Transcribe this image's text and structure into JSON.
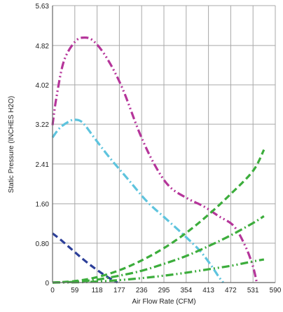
{
  "chart_data": {
    "type": "line",
    "xlabel": "Air Flow Rate (CFM)",
    "ylabel": "Static Pressure (INCHES H2O)",
    "xlim": [
      0,
      590
    ],
    "ylim": [
      0,
      5.63
    ],
    "x_ticks": [
      0,
      59,
      118,
      177,
      236,
      295,
      354,
      413,
      472,
      531,
      590
    ],
    "y_ticks": [
      0,
      0.8,
      1.6,
      2.41,
      3.22,
      4.02,
      4.82,
      5.63
    ],
    "x_tick_labels": [
      "0",
      "59",
      "118",
      "177",
      "236",
      "295",
      "354",
      "413",
      "472",
      "531",
      "590"
    ],
    "y_tick_labels": [
      "0",
      "0.80",
      "1.60",
      "2.41",
      "3.22",
      "4.02",
      "4.82",
      "5.63"
    ],
    "grid": true,
    "series": [
      {
        "color": "#b5359a",
        "dash": "dash-dot-dot",
        "points": [
          [
            0,
            3.2
          ],
          [
            10,
            3.75
          ],
          [
            30,
            4.5
          ],
          [
            60,
            4.9
          ],
          [
            85,
            4.98
          ],
          [
            110,
            4.9
          ],
          [
            145,
            4.55
          ],
          [
            185,
            3.95
          ],
          [
            230,
            3.05
          ],
          [
            270,
            2.4
          ],
          [
            310,
            1.95
          ],
          [
            360,
            1.7
          ],
          [
            400,
            1.55
          ],
          [
            440,
            1.35
          ],
          [
            480,
            1.15
          ],
          [
            510,
            0.75
          ],
          [
            530,
            0.35
          ],
          [
            541,
            0.0
          ]
        ]
      },
      {
        "color": "#5ec4de",
        "dash": "dash-dot",
        "points": [
          [
            0,
            2.95
          ],
          [
            20,
            3.15
          ],
          [
            45,
            3.28
          ],
          [
            60,
            3.31
          ],
          [
            80,
            3.25
          ],
          [
            110,
            2.95
          ],
          [
            150,
            2.55
          ],
          [
            200,
            2.1
          ],
          [
            250,
            1.65
          ],
          [
            300,
            1.3
          ],
          [
            350,
            0.95
          ],
          [
            390,
            0.65
          ],
          [
            420,
            0.35
          ],
          [
            440,
            0.12
          ],
          [
            452,
            0.0
          ]
        ]
      },
      {
        "color": "#2c3f99",
        "dash": "dash",
        "points": [
          [
            0,
            1.0
          ],
          [
            20,
            0.88
          ],
          [
            50,
            0.68
          ],
          [
            80,
            0.48
          ],
          [
            110,
            0.3
          ],
          [
            140,
            0.14
          ],
          [
            160,
            0.05
          ],
          [
            172,
            0.0
          ]
        ]
      },
      {
        "color": "#3cad3c",
        "dash": "dash",
        "points": [
          [
            0,
            0.0
          ],
          [
            59,
            0.03
          ],
          [
            118,
            0.11
          ],
          [
            177,
            0.25
          ],
          [
            236,
            0.45
          ],
          [
            295,
            0.7
          ],
          [
            354,
            1.01
          ],
          [
            413,
            1.38
          ],
          [
            472,
            1.8
          ],
          [
            531,
            2.27
          ],
          [
            560,
            2.7
          ]
        ]
      },
      {
        "color": "#3cad3c",
        "dash": "dash-dot",
        "points": [
          [
            0,
            0.0
          ],
          [
            59,
            0.015
          ],
          [
            118,
            0.06
          ],
          [
            177,
            0.14
          ],
          [
            236,
            0.24
          ],
          [
            295,
            0.38
          ],
          [
            354,
            0.54
          ],
          [
            413,
            0.74
          ],
          [
            472,
            0.96
          ],
          [
            531,
            1.21
          ],
          [
            560,
            1.35
          ]
        ]
      },
      {
        "color": "#3cad3c",
        "dash": "dash-dot-dot",
        "points": [
          [
            0,
            0.0
          ],
          [
            59,
            0.005
          ],
          [
            118,
            0.02
          ],
          [
            177,
            0.05
          ],
          [
            236,
            0.09
          ],
          [
            295,
            0.14
          ],
          [
            354,
            0.2
          ],
          [
            413,
            0.27
          ],
          [
            472,
            0.34
          ],
          [
            531,
            0.43
          ],
          [
            560,
            0.47
          ]
        ]
      }
    ]
  }
}
